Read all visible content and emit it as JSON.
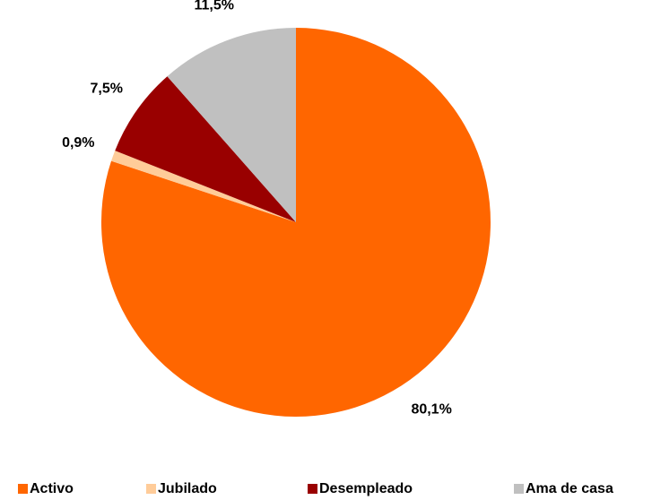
{
  "chart_data": {
    "type": "pie",
    "categories": [
      "Activo",
      "Jubilado",
      "Desempleado",
      "Ama de casa"
    ],
    "values": [
      80.1,
      0.9,
      7.5,
      11.5
    ],
    "value_labels": [
      "80,1%",
      "0,9%",
      "7,5%",
      "11,5%"
    ],
    "colors": [
      "#ff6600",
      "#ffcc99",
      "#990000",
      "#c0c0c0"
    ],
    "legend": "bottom"
  }
}
